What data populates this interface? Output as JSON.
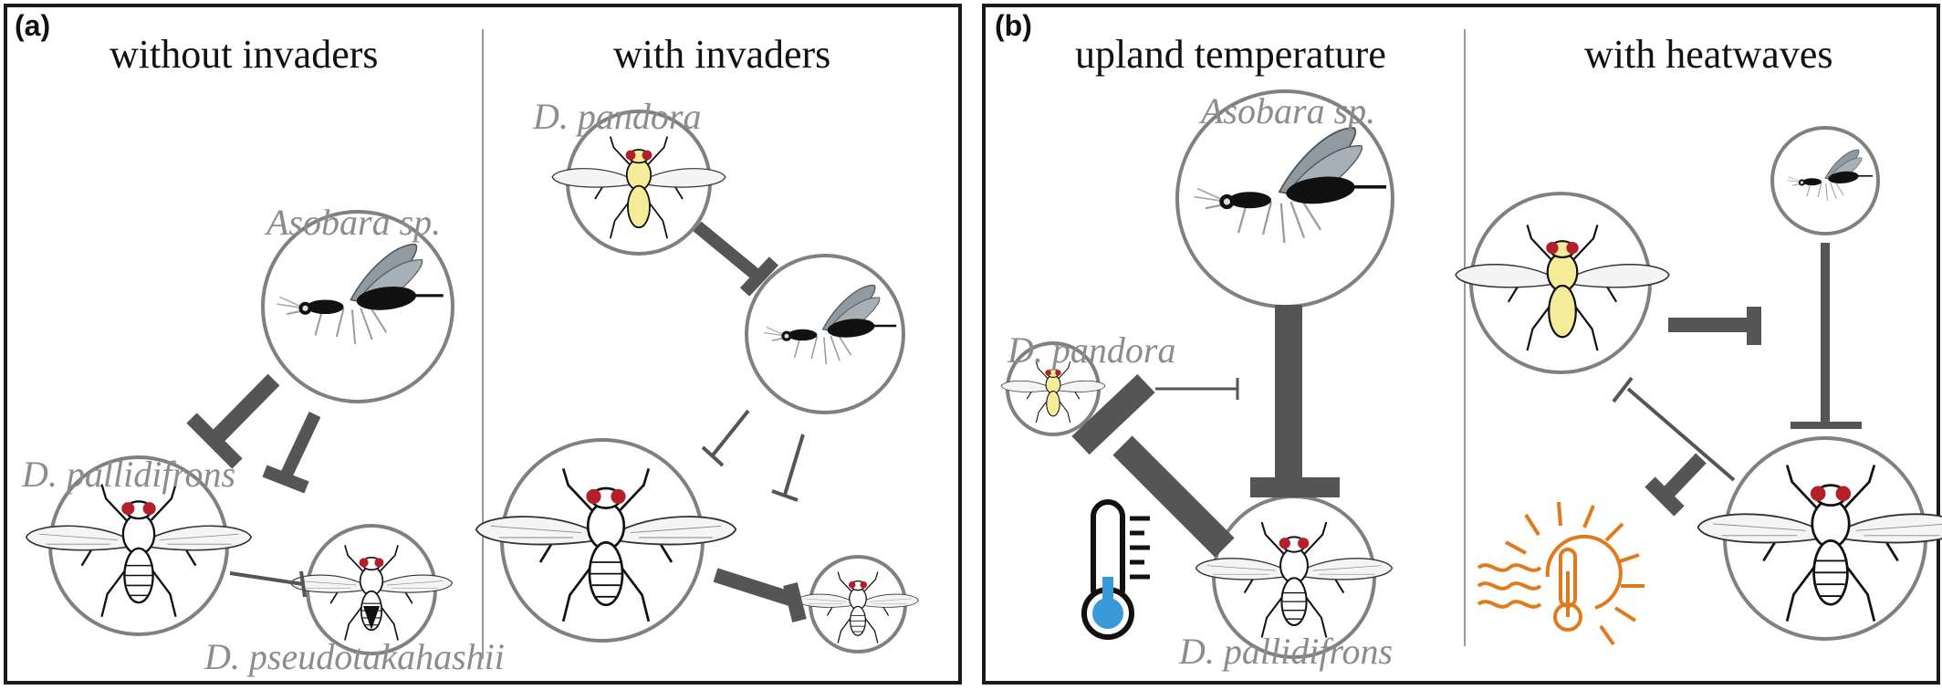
{
  "panel_a": {
    "letter": "(a)",
    "left_heading": "without invaders",
    "right_heading": "with invaders",
    "labels": {
      "asobara": "Asobara sp.",
      "d_pallidifrons": "D. pallidifrons",
      "d_pseudotakahashii": "D. pseudotakahashii",
      "d_pandora": "D. pandora"
    }
  },
  "panel_b": {
    "letter": "(b)",
    "left_heading": "upland temperature",
    "right_heading": "with heatwaves",
    "labels": {
      "asobara": "Asobara sp.",
      "d_pandora": "D. pandora",
      "d_pallidifrons": "D. pallidifrons"
    }
  },
  "colors": {
    "frame": "#1a1a1a",
    "circle": "#808080",
    "arrow": "#555555",
    "label": "#8c8c8c",
    "fly_eye": "#b3202a",
    "fly_body_yellow": "#f5ec9a",
    "wasp_wing": "#8f9aa2",
    "thermometer_fill": "#3a9ad9",
    "heat_orange": "#e07a1f"
  },
  "icons": [
    "asobara-wasp-icon",
    "drosophila-fly-icon",
    "thermometer-icon",
    "heatwave-icon"
  ]
}
